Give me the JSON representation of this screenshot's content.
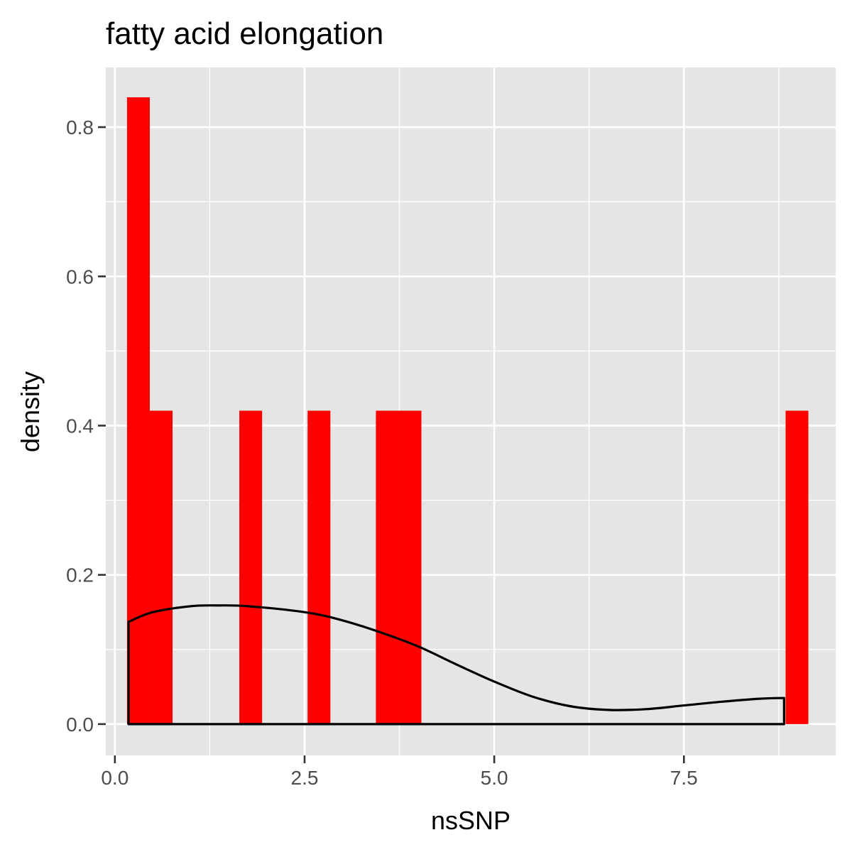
{
  "chart_data": {
    "type": "histogram",
    "title": "fatty acid elongation",
    "xlabel": "nsSNP",
    "ylabel": "density",
    "xlim": [
      -0.12,
      9.5
    ],
    "ylim": [
      -0.042,
      0.88
    ],
    "x_ticks": [
      {
        "value": 0.0,
        "label": "0.0"
      },
      {
        "value": 2.5,
        "label": "2.5"
      },
      {
        "value": 5.0,
        "label": "5.0"
      },
      {
        "value": 7.5,
        "label": "7.5"
      }
    ],
    "y_ticks": [
      {
        "value": 0.0,
        "label": "0.0"
      },
      {
        "value": 0.2,
        "label": "0.2"
      },
      {
        "value": 0.4,
        "label": "0.4"
      },
      {
        "value": 0.6,
        "label": "0.6"
      },
      {
        "value": 0.8,
        "label": "0.8"
      }
    ],
    "x_minor": [
      1.25,
      3.75,
      6.25,
      8.75
    ],
    "y_minor": [
      0.1,
      0.3,
      0.5,
      0.7
    ],
    "grid": true,
    "bars": [
      {
        "x0": 0.16,
        "x1": 0.46,
        "density": 0.84
      },
      {
        "x0": 0.46,
        "x1": 0.76,
        "density": 0.42
      },
      {
        "x0": 1.64,
        "x1": 1.94,
        "density": 0.42
      },
      {
        "x0": 2.54,
        "x1": 2.84,
        "density": 0.42
      },
      {
        "x0": 3.44,
        "x1": 3.74,
        "density": 0.42
      },
      {
        "x0": 3.74,
        "x1": 4.04,
        "density": 0.42
      },
      {
        "x0": 8.84,
        "x1": 9.14,
        "density": 0.42
      }
    ],
    "bar_color": "#ff0000",
    "density_curve": {
      "color": "#000000",
      "x": [
        0.18,
        0.5,
        1.0,
        1.35,
        1.75,
        2.5,
        3.0,
        3.5,
        4.0,
        4.5,
        5.0,
        5.5,
        6.0,
        6.5,
        7.0,
        7.5,
        8.0,
        8.5,
        8.82
      ],
      "y": [
        0.137,
        0.15,
        0.158,
        0.159,
        0.158,
        0.15,
        0.139,
        0.123,
        0.104,
        0.08,
        0.057,
        0.037,
        0.024,
        0.019,
        0.02,
        0.025,
        0.03,
        0.034,
        0.035
      ]
    }
  }
}
